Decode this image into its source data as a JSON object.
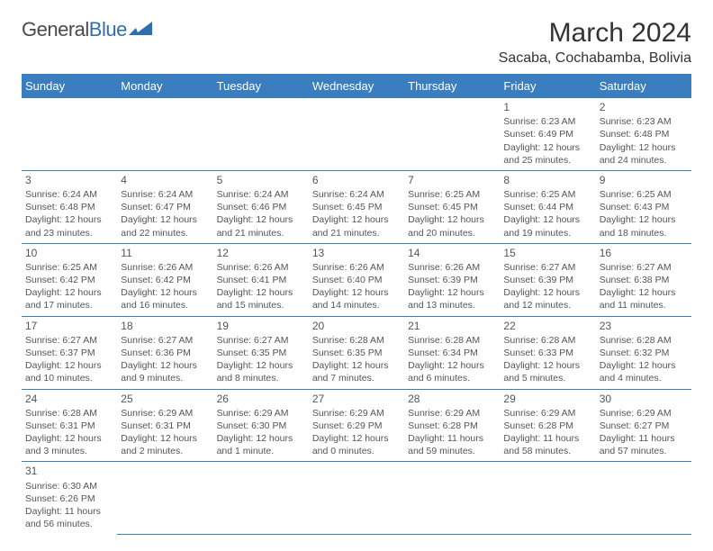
{
  "brand": {
    "part1": "General",
    "part2": "Blue"
  },
  "title": "March 2024",
  "location": "Sacaba, Cochabamba, Bolivia",
  "colors": {
    "header_bg": "#3a7ec0",
    "header_text": "#ffffff",
    "cell_border": "#3a7ec0",
    "body_text": "#555555",
    "title_text": "#333333",
    "brand_gray": "#4a4a4a",
    "brand_blue": "#2f6fb0",
    "background": "#ffffff"
  },
  "weekdays": [
    "Sunday",
    "Monday",
    "Tuesday",
    "Wednesday",
    "Thursday",
    "Friday",
    "Saturday"
  ],
  "weeks": [
    [
      null,
      null,
      null,
      null,
      null,
      {
        "d": "1",
        "sr": "Sunrise: 6:23 AM",
        "ss": "Sunset: 6:49 PM",
        "dl1": "Daylight: 12 hours",
        "dl2": "and 25 minutes."
      },
      {
        "d": "2",
        "sr": "Sunrise: 6:23 AM",
        "ss": "Sunset: 6:48 PM",
        "dl1": "Daylight: 12 hours",
        "dl2": "and 24 minutes."
      }
    ],
    [
      {
        "d": "3",
        "sr": "Sunrise: 6:24 AM",
        "ss": "Sunset: 6:48 PM",
        "dl1": "Daylight: 12 hours",
        "dl2": "and 23 minutes."
      },
      {
        "d": "4",
        "sr": "Sunrise: 6:24 AM",
        "ss": "Sunset: 6:47 PM",
        "dl1": "Daylight: 12 hours",
        "dl2": "and 22 minutes."
      },
      {
        "d": "5",
        "sr": "Sunrise: 6:24 AM",
        "ss": "Sunset: 6:46 PM",
        "dl1": "Daylight: 12 hours",
        "dl2": "and 21 minutes."
      },
      {
        "d": "6",
        "sr": "Sunrise: 6:24 AM",
        "ss": "Sunset: 6:45 PM",
        "dl1": "Daylight: 12 hours",
        "dl2": "and 21 minutes."
      },
      {
        "d": "7",
        "sr": "Sunrise: 6:25 AM",
        "ss": "Sunset: 6:45 PM",
        "dl1": "Daylight: 12 hours",
        "dl2": "and 20 minutes."
      },
      {
        "d": "8",
        "sr": "Sunrise: 6:25 AM",
        "ss": "Sunset: 6:44 PM",
        "dl1": "Daylight: 12 hours",
        "dl2": "and 19 minutes."
      },
      {
        "d": "9",
        "sr": "Sunrise: 6:25 AM",
        "ss": "Sunset: 6:43 PM",
        "dl1": "Daylight: 12 hours",
        "dl2": "and 18 minutes."
      }
    ],
    [
      {
        "d": "10",
        "sr": "Sunrise: 6:25 AM",
        "ss": "Sunset: 6:42 PM",
        "dl1": "Daylight: 12 hours",
        "dl2": "and 17 minutes."
      },
      {
        "d": "11",
        "sr": "Sunrise: 6:26 AM",
        "ss": "Sunset: 6:42 PM",
        "dl1": "Daylight: 12 hours",
        "dl2": "and 16 minutes."
      },
      {
        "d": "12",
        "sr": "Sunrise: 6:26 AM",
        "ss": "Sunset: 6:41 PM",
        "dl1": "Daylight: 12 hours",
        "dl2": "and 15 minutes."
      },
      {
        "d": "13",
        "sr": "Sunrise: 6:26 AM",
        "ss": "Sunset: 6:40 PM",
        "dl1": "Daylight: 12 hours",
        "dl2": "and 14 minutes."
      },
      {
        "d": "14",
        "sr": "Sunrise: 6:26 AM",
        "ss": "Sunset: 6:39 PM",
        "dl1": "Daylight: 12 hours",
        "dl2": "and 13 minutes."
      },
      {
        "d": "15",
        "sr": "Sunrise: 6:27 AM",
        "ss": "Sunset: 6:39 PM",
        "dl1": "Daylight: 12 hours",
        "dl2": "and 12 minutes."
      },
      {
        "d": "16",
        "sr": "Sunrise: 6:27 AM",
        "ss": "Sunset: 6:38 PM",
        "dl1": "Daylight: 12 hours",
        "dl2": "and 11 minutes."
      }
    ],
    [
      {
        "d": "17",
        "sr": "Sunrise: 6:27 AM",
        "ss": "Sunset: 6:37 PM",
        "dl1": "Daylight: 12 hours",
        "dl2": "and 10 minutes."
      },
      {
        "d": "18",
        "sr": "Sunrise: 6:27 AM",
        "ss": "Sunset: 6:36 PM",
        "dl1": "Daylight: 12 hours",
        "dl2": "and 9 minutes."
      },
      {
        "d": "19",
        "sr": "Sunrise: 6:27 AM",
        "ss": "Sunset: 6:35 PM",
        "dl1": "Daylight: 12 hours",
        "dl2": "and 8 minutes."
      },
      {
        "d": "20",
        "sr": "Sunrise: 6:28 AM",
        "ss": "Sunset: 6:35 PM",
        "dl1": "Daylight: 12 hours",
        "dl2": "and 7 minutes."
      },
      {
        "d": "21",
        "sr": "Sunrise: 6:28 AM",
        "ss": "Sunset: 6:34 PM",
        "dl1": "Daylight: 12 hours",
        "dl2": "and 6 minutes."
      },
      {
        "d": "22",
        "sr": "Sunrise: 6:28 AM",
        "ss": "Sunset: 6:33 PM",
        "dl1": "Daylight: 12 hours",
        "dl2": "and 5 minutes."
      },
      {
        "d": "23",
        "sr": "Sunrise: 6:28 AM",
        "ss": "Sunset: 6:32 PM",
        "dl1": "Daylight: 12 hours",
        "dl2": "and 4 minutes."
      }
    ],
    [
      {
        "d": "24",
        "sr": "Sunrise: 6:28 AM",
        "ss": "Sunset: 6:31 PM",
        "dl1": "Daylight: 12 hours",
        "dl2": "and 3 minutes."
      },
      {
        "d": "25",
        "sr": "Sunrise: 6:29 AM",
        "ss": "Sunset: 6:31 PM",
        "dl1": "Daylight: 12 hours",
        "dl2": "and 2 minutes."
      },
      {
        "d": "26",
        "sr": "Sunrise: 6:29 AM",
        "ss": "Sunset: 6:30 PM",
        "dl1": "Daylight: 12 hours",
        "dl2": "and 1 minute."
      },
      {
        "d": "27",
        "sr": "Sunrise: 6:29 AM",
        "ss": "Sunset: 6:29 PM",
        "dl1": "Daylight: 12 hours",
        "dl2": "and 0 minutes."
      },
      {
        "d": "28",
        "sr": "Sunrise: 6:29 AM",
        "ss": "Sunset: 6:28 PM",
        "dl1": "Daylight: 11 hours",
        "dl2": "and 59 minutes."
      },
      {
        "d": "29",
        "sr": "Sunrise: 6:29 AM",
        "ss": "Sunset: 6:28 PM",
        "dl1": "Daylight: 11 hours",
        "dl2": "and 58 minutes."
      },
      {
        "d": "30",
        "sr": "Sunrise: 6:29 AM",
        "ss": "Sunset: 6:27 PM",
        "dl1": "Daylight: 11 hours",
        "dl2": "and 57 minutes."
      }
    ],
    [
      {
        "d": "31",
        "sr": "Sunrise: 6:30 AM",
        "ss": "Sunset: 6:26 PM",
        "dl1": "Daylight: 11 hours",
        "dl2": "and 56 minutes."
      },
      null,
      null,
      null,
      null,
      null,
      null
    ]
  ]
}
